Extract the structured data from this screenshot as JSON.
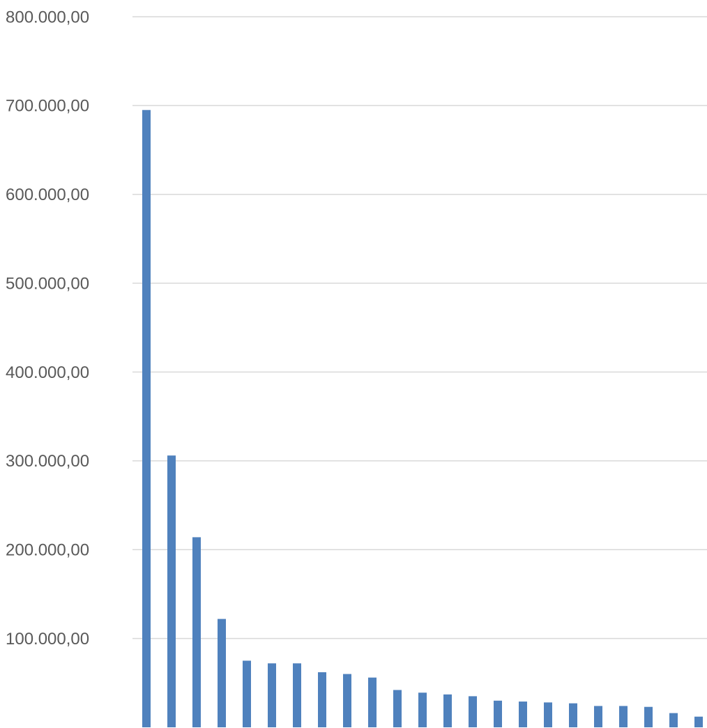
{
  "chart_data": {
    "type": "bar",
    "categories": [
      null,
      null,
      null,
      null,
      null,
      null,
      null,
      null,
      null,
      null,
      null,
      null,
      null,
      null,
      null,
      null,
      null,
      null,
      null,
      null,
      null,
      null,
      null
    ],
    "values": [
      695000,
      306000,
      214000,
      122000,
      75000,
      72000,
      72000,
      62000,
      60000,
      56000,
      42000,
      39000,
      37000,
      35000,
      30000,
      29000,
      28000,
      27000,
      24000,
      24000,
      23000,
      16000,
      12000
    ],
    "color": "#4f81bd",
    "ylim": [
      0,
      800000
    ],
    "yticks": [
      {
        "value": 100000,
        "label": "100.000,00"
      },
      {
        "value": 200000,
        "label": "200.000,00"
      },
      {
        "value": 300000,
        "label": "300.000,00"
      },
      {
        "value": 400000,
        "label": "400.000,00"
      },
      {
        "value": 500000,
        "label": "500.000,00"
      },
      {
        "value": 600000,
        "label": "600.000,00"
      },
      {
        "value": 700000,
        "label": "700.000,00"
      },
      {
        "value": 800000,
        "label": "800.000,00"
      }
    ],
    "grid": true
  }
}
